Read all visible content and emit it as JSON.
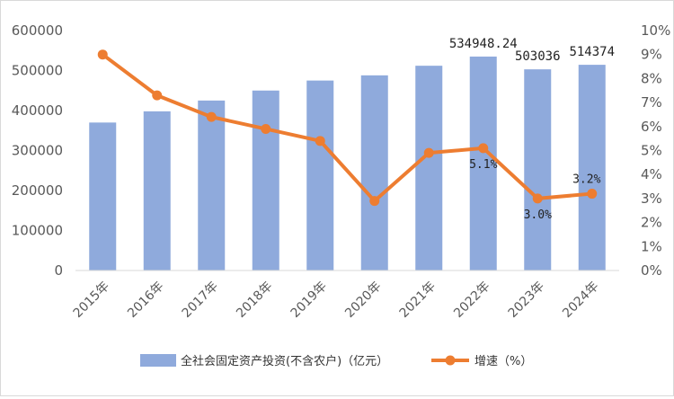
{
  "chart_data": {
    "type": "bar",
    "categories": [
      "2015年",
      "2016年",
      "2017年",
      "2018年",
      "2019年",
      "2020年",
      "2021年",
      "2022年",
      "2023年",
      "2024年"
    ],
    "series": [
      {
        "name": "全社会固定资产投资(不含农户)（亿元）",
        "type": "bar",
        "axis": "left",
        "color": "#8faadc",
        "values": [
          370000,
          398000,
          425000,
          450000,
          475000,
          488000,
          512000,
          534948.24,
          503036,
          514374
        ],
        "labels": [
          "",
          "",
          "",
          "",
          "",
          "",
          "",
          "534948.24",
          "503036",
          "514374"
        ]
      },
      {
        "name": "增速（%）",
        "type": "line",
        "axis": "right",
        "color": "#ed7d31",
        "values": [
          9.0,
          7.3,
          6.4,
          5.9,
          5.4,
          2.9,
          4.9,
          5.1,
          3.0,
          3.2
        ],
        "labels": [
          "",
          "",
          "",
          "",
          "",
          "",
          "",
          "5.1%",
          "3.0%",
          "3.2%"
        ]
      }
    ],
    "y_left": {
      "min": 0,
      "max": 600000,
      "ticks": [
        0,
        100000,
        200000,
        300000,
        400000,
        500000,
        600000
      ],
      "tick_labels": [
        "0",
        "100000",
        "200000",
        "300000",
        "400000",
        "500000",
        "600000"
      ]
    },
    "y_right": {
      "min": 0,
      "max": 10,
      "ticks": [
        0,
        1,
        2,
        3,
        4,
        5,
        6,
        7,
        8,
        9,
        10
      ],
      "tick_labels": [
        "0%",
        "1%",
        "2%",
        "3%",
        "4%",
        "5%",
        "6%",
        "7%",
        "8%",
        "9%",
        "10%"
      ]
    },
    "grid": false,
    "legend": "bottom",
    "title": "",
    "xlabel": "",
    "ylabel": ""
  }
}
